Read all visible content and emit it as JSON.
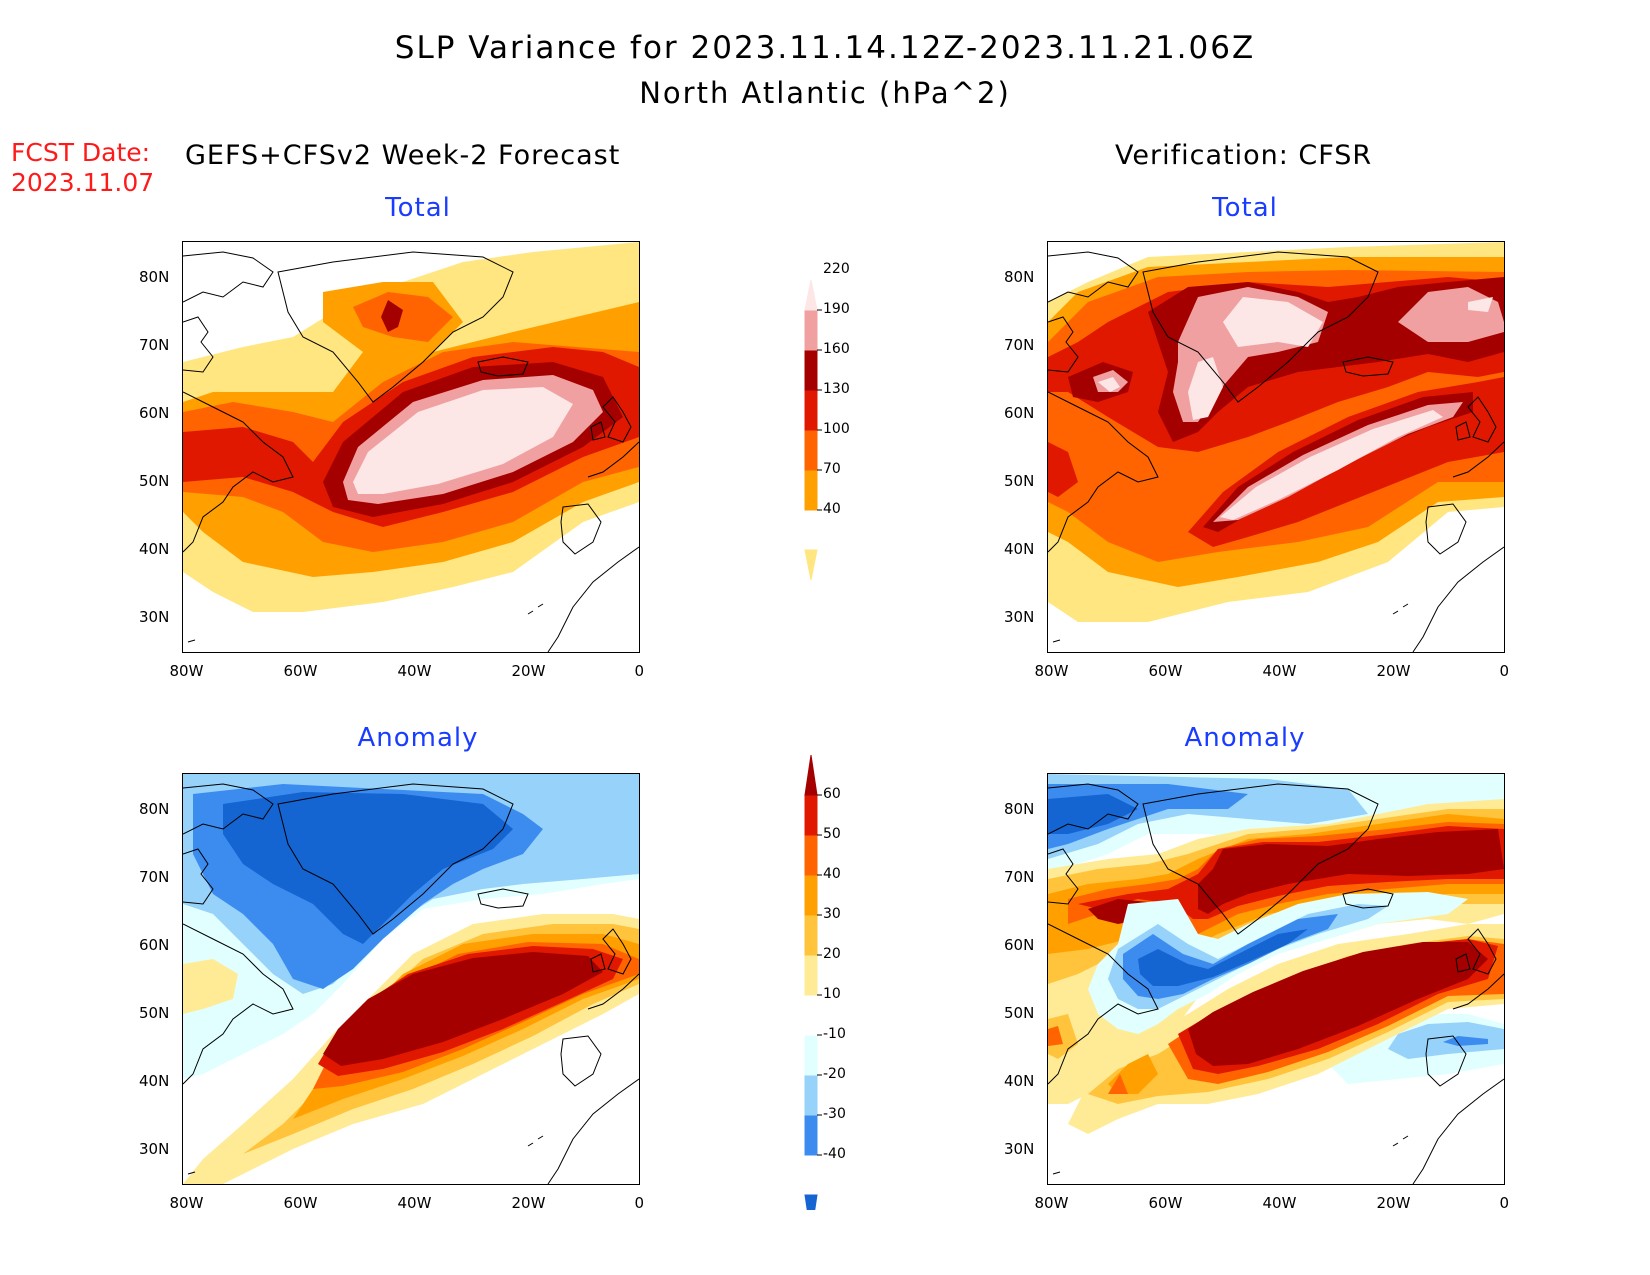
{
  "title": {
    "line1": "SLP Variance for 2023.11.14.12Z-2023.11.21.06Z",
    "line2": "North Atlantic (hPa^2)"
  },
  "fcst_date": {
    "label": "FCST Date:",
    "value": "2023.11.07"
  },
  "columns": {
    "forecast": "GEFS+CFSv2 Week-2 Forecast",
    "verification": "Verification: CFSR"
  },
  "panels": {
    "total_left": "Total",
    "total_right": "Total",
    "anomaly_left": "Anomaly",
    "anomaly_right": "Anomaly"
  },
  "axes": {
    "lat_labels": [
      "80N",
      "70N",
      "60N",
      "50N",
      "40N",
      "30N"
    ],
    "lon_labels": [
      "80W",
      "60W",
      "40W",
      "20W",
      "0"
    ]
  },
  "colorbars": {
    "total": {
      "levels": [
        "40",
        "70",
        "100",
        "130",
        "160",
        "190",
        "220"
      ],
      "colors": [
        "#ffe680",
        "#ffa000",
        "#ff6400",
        "#e11800",
        "#a50000",
        "#f0a0a0",
        "#fde6e6"
      ]
    },
    "anomaly": {
      "levels": [
        "-40",
        "-30",
        "-20",
        "-10",
        "10",
        "20",
        "30",
        "40",
        "50",
        "60"
      ],
      "colors": [
        "#1464d2",
        "#3c8cf0",
        "#96d2fa",
        "#e1ffff",
        "#ffffff",
        "#ffeb96",
        "#ffc33c",
        "#ffa000",
        "#ff6400",
        "#e11800",
        "#a50000"
      ]
    }
  },
  "map_colors": {
    "total": [
      "#ffe680",
      "#ffa000",
      "#ff6400",
      "#e11800",
      "#a50000",
      "#f0a0a0",
      "#fde6e6"
    ],
    "anomaly_pos": [
      "#ffeb96",
      "#ffc33c",
      "#ffa000",
      "#ff6400",
      "#e11800",
      "#a50000"
    ],
    "anomaly_neg": [
      "#e1ffff",
      "#96d2fa",
      "#3c8cf0",
      "#1464d2"
    ]
  }
}
